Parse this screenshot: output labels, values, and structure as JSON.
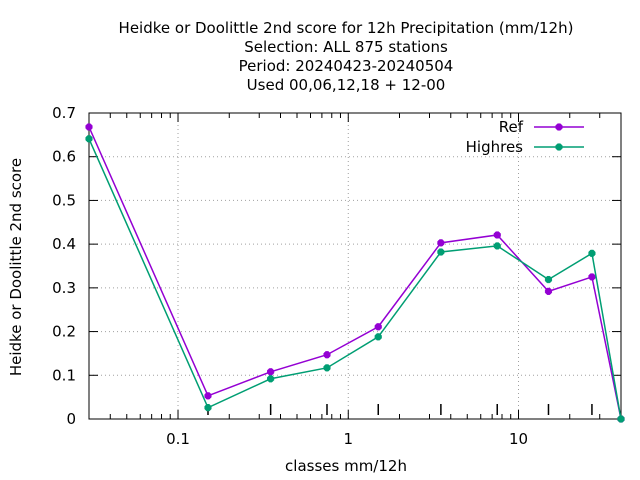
{
  "chart_data": {
    "type": "line",
    "title_lines": [
      "Heidke or Doolittle 2nd score  for 12h Precipitation (mm/12h)",
      "Selection: ALL    875 stations",
      "Period: 20240423-20240504",
      "Used  00,06,12,18 + 12-00"
    ],
    "xlabel": "classes mm/12h",
    "ylabel": "Heidke or Doolittle 2nd score",
    "x_scale": "log",
    "xlim": [
      0.03,
      40
    ],
    "ylim": [
      0,
      0.7
    ],
    "x_tick_labels": [
      "0.1",
      "1",
      "10"
    ],
    "y_tick_labels": [
      "0",
      "0.1",
      "0.2",
      "0.3",
      "0.4",
      "0.5",
      "0.6",
      "0.7"
    ],
    "grid": true,
    "legend_position": "top-right",
    "x": [
      0.03,
      0.15,
      0.35,
      0.75,
      1.5,
      3.5,
      7.5,
      15,
      27,
      40
    ],
    "series": [
      {
        "name": "Ref",
        "color": "#9400d3",
        "values": [
          0.668,
          0.053,
          0.108,
          0.147,
          0.211,
          0.403,
          0.421,
          0.292,
          0.325,
          0.0
        ]
      },
      {
        "name": "Highres",
        "color": "#009e73",
        "values": [
          0.641,
          0.026,
          0.092,
          0.117,
          0.188,
          0.382,
          0.396,
          0.319,
          0.379,
          0.0
        ]
      }
    ]
  }
}
